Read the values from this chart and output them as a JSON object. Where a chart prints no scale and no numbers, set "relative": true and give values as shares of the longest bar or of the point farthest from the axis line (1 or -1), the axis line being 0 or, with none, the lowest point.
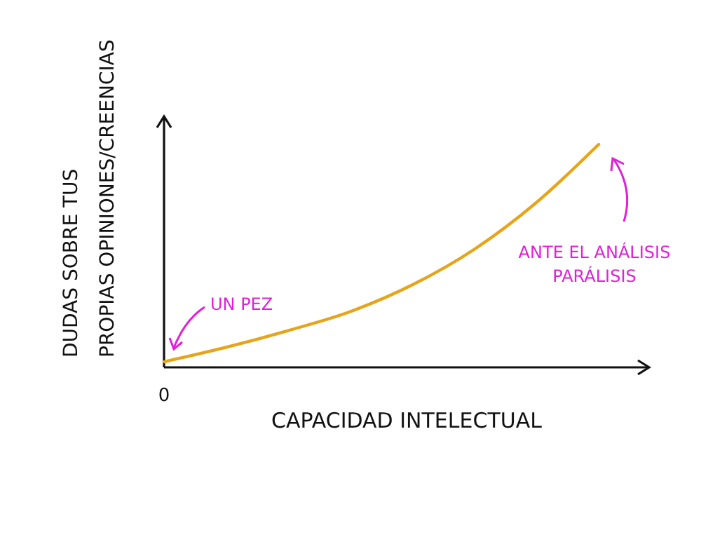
{
  "chart_data": {
    "type": "line",
    "relative": true,
    "xlabel": "CAPACIDAD INTELECTUAL",
    "ylabel": "DUDAS SOBRE TUS PROPIAS OPINIONES/CREENCIAS",
    "categories": [
      null,
      null,
      null,
      null,
      null,
      null,
      null,
      null
    ],
    "values": [
      0.025,
      0.09,
      0.165,
      0.25,
      0.37,
      0.53,
      0.74,
      1
    ],
    "color": "#e6a419",
    "annotations": [
      "0",
      "UN PEZ",
      "ANTE EL ANÁLISIS PARÁLISIS"
    ]
  }
}
